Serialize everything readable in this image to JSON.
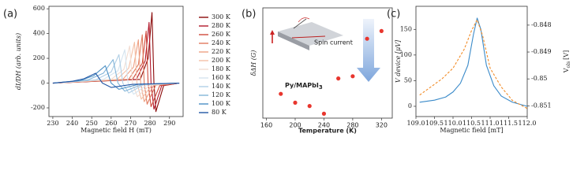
{
  "chart_data": [
    {
      "type": "line",
      "label": "(a)",
      "xlabel": "Magnetic field H (mT)",
      "ylabel": "dI/DH (arb. units)",
      "xlim": [
        228,
        297
      ],
      "ylim": [
        -270,
        620
      ],
      "xticks": [
        230,
        240,
        250,
        260,
        270,
        280,
        290
      ],
      "yticks": [
        -200,
        0,
        200,
        400,
        600
      ],
      "legend": "right",
      "series": [
        {
          "name": "300 K",
          "color": "#8b0a0a",
          "x": [
            230,
            275,
            279,
            281,
            282,
            283,
            287,
            295
          ],
          "values": [
            0,
            30,
            200,
            570,
            0,
            -230,
            -20,
            0
          ]
        },
        {
          "name": "280 K",
          "color": "#b2182b",
          "x": [
            230,
            273,
            277.5,
            279.5,
            280.5,
            282,
            286,
            295
          ],
          "values": [
            0,
            30,
            180,
            490,
            0,
            -210,
            -20,
            0
          ]
        },
        {
          "name": "260 K",
          "color": "#cf4a3c",
          "x": [
            230,
            271,
            276,
            278,
            279,
            280.5,
            285,
            295
          ],
          "values": [
            0,
            30,
            160,
            420,
            0,
            -190,
            -20,
            0
          ]
        },
        {
          "name": "240 K",
          "color": "#e07b5f",
          "x": [
            230,
            269,
            274,
            276,
            277,
            278.5,
            283,
            295
          ],
          "values": [
            0,
            30,
            150,
            390,
            0,
            -170,
            -15,
            0
          ]
        },
        {
          "name": "220 K",
          "color": "#eea184",
          "x": [
            230,
            266,
            271.5,
            274,
            275.2,
            277,
            282,
            295
          ],
          "values": [
            0,
            30,
            130,
            350,
            0,
            -150,
            -15,
            0
          ]
        },
        {
          "name": "200 K",
          "color": "#f4c0a6",
          "x": [
            230,
            263,
            269,
            272,
            273.3,
            275.5,
            281,
            295
          ],
          "values": [
            0,
            30,
            120,
            330,
            0,
            -130,
            -15,
            0
          ]
        },
        {
          "name": "180 K",
          "color": "#f3ddd2",
          "x": [
            230,
            260,
            266.5,
            269.5,
            271,
            273.5,
            280,
            295
          ],
          "values": [
            0,
            30,
            110,
            300,
            0,
            -110,
            -15,
            0
          ]
        },
        {
          "name": "160 K",
          "color": "#d5e4ef",
          "x": [
            230,
            256,
            263.5,
            267,
            268.7,
            271.5,
            279,
            295
          ],
          "values": [
            0,
            30,
            100,
            270,
            0,
            -90,
            -10,
            0
          ]
        },
        {
          "name": "140 K",
          "color": "#b1cfe6",
          "x": [
            230,
            252,
            260,
            264,
            266,
            269,
            277,
            295
          ],
          "values": [
            0,
            25,
            90,
            230,
            0,
            -80,
            -10,
            0
          ]
        },
        {
          "name": "120 K",
          "color": "#83b5d9",
          "x": [
            230,
            248,
            256,
            261,
            263.5,
            267,
            276,
            295
          ],
          "values": [
            0,
            25,
            80,
            190,
            0,
            -65,
            -10,
            0
          ]
        },
        {
          "name": "100 K",
          "color": "#4a8fc4",
          "x": [
            230,
            244,
            251,
            257,
            260,
            264,
            274,
            295
          ],
          "values": [
            0,
            20,
            60,
            140,
            0,
            -50,
            -10,
            0
          ]
        },
        {
          "name": "80 K",
          "color": "#2156a5",
          "x": [
            230,
            240,
            246,
            252,
            255.5,
            260,
            271,
            295
          ],
          "values": [
            0,
            15,
            35,
            80,
            0,
            -35,
            -10,
            0
          ]
        }
      ]
    },
    {
      "type": "scatter",
      "label": "(b)",
      "xlabel": "Temperature (K)",
      "ylabel": "δΔH (G)",
      "inset_label": "Py/MAPbI",
      "inset_label_sub": "3",
      "inset_note": "Spin current",
      "xlim": [
        155,
        335
      ],
      "ylim": [
        0,
        100
      ],
      "xticks": [
        160,
        200,
        240,
        280,
        320
      ],
      "color": "#e8362e",
      "series": [
        {
          "x": [
            180,
            200,
            220,
            240,
            260,
            280,
            300,
            320
          ],
          "values": [
            22,
            14,
            11,
            4,
            36,
            38,
            72,
            79
          ]
        }
      ]
    },
    {
      "type": "line",
      "label": "(c)",
      "xlabel": "Magnetic field [mT]",
      "ylabel": "V device [μV]",
      "y2label": "V",
      "y2label_sub": "ols",
      "y2label_unit": "[V]",
      "xlim": [
        109,
        112
      ],
      "ylim": [
        -20,
        195
      ],
      "y2lim": [
        -0.8514,
        -0.8473
      ],
      "xticks": [
        {
          "value": 109,
          "label": "109.0"
        },
        109.5,
        {
          "value": 110,
          "label": "110.0"
        },
        110.5,
        {
          "value": 111,
          "label": "111.0"
        },
        111.5,
        {
          "value": 112,
          "label": "112.0"
        }
      ],
      "yticks": [
        0,
        50,
        100,
        150
      ],
      "y2ticks": [
        -0.848,
        -0.849,
        -0.85,
        -0.851
      ],
      "series": [
        {
          "color": "#3a8ac9",
          "x": [
            109.1,
            109.5,
            109.8,
            110.0,
            110.2,
            110.4,
            110.55,
            110.65,
            110.75,
            110.9,
            111.1,
            111.3,
            111.6,
            112.0
          ],
          "values": [
            8,
            12,
            18,
            28,
            45,
            80,
            140,
            172,
            150,
            80,
            40,
            20,
            8,
            0
          ]
        },
        {
          "color": "#f28c28",
          "axis": "y2",
          "linestyle": "dashed",
          "x": [
            109.1,
            109.4,
            109.7,
            110.0,
            110.3,
            110.5,
            110.65,
            110.8,
            111.0,
            111.3,
            111.6,
            112.0
          ],
          "values": [
            -0.8506,
            -0.8503,
            -0.85,
            -0.8496,
            -0.8489,
            -0.8482,
            -0.8478,
            -0.8484,
            -0.8496,
            -0.8503,
            -0.8508,
            -0.8511
          ]
        }
      ]
    }
  ]
}
